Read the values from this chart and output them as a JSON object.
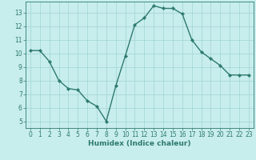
{
  "xlabel": "Humidex (Indice chaleur)",
  "ylabel": "",
  "x": [
    0,
    1,
    2,
    3,
    4,
    5,
    6,
    7,
    8,
    9,
    10,
    11,
    12,
    13,
    14,
    15,
    16,
    17,
    18,
    19,
    20,
    21,
    22,
    23
  ],
  "y": [
    10.2,
    10.2,
    9.4,
    8.0,
    7.4,
    7.3,
    6.5,
    6.1,
    5.0,
    7.6,
    9.8,
    12.1,
    12.6,
    13.5,
    13.3,
    13.3,
    12.9,
    11.0,
    10.1,
    9.6,
    9.1,
    8.4,
    8.4,
    8.4
  ],
  "line_color": "#2d7a6e",
  "marker": "D",
  "markersize": 2.2,
  "linewidth": 1.0,
  "background_color": "#c8eded",
  "grid_color": "#a0d4d4",
  "ylim": [
    4.5,
    13.8
  ],
  "yticks": [
    5,
    6,
    7,
    8,
    9,
    10,
    11,
    12,
    13
  ],
  "xlim": [
    -0.5,
    23.5
  ],
  "xticks": [
    0,
    1,
    2,
    3,
    4,
    5,
    6,
    7,
    8,
    9,
    10,
    11,
    12,
    13,
    14,
    15,
    16,
    17,
    18,
    19,
    20,
    21,
    22,
    23
  ],
  "tick_fontsize": 5.5,
  "xlabel_fontsize": 6.5
}
